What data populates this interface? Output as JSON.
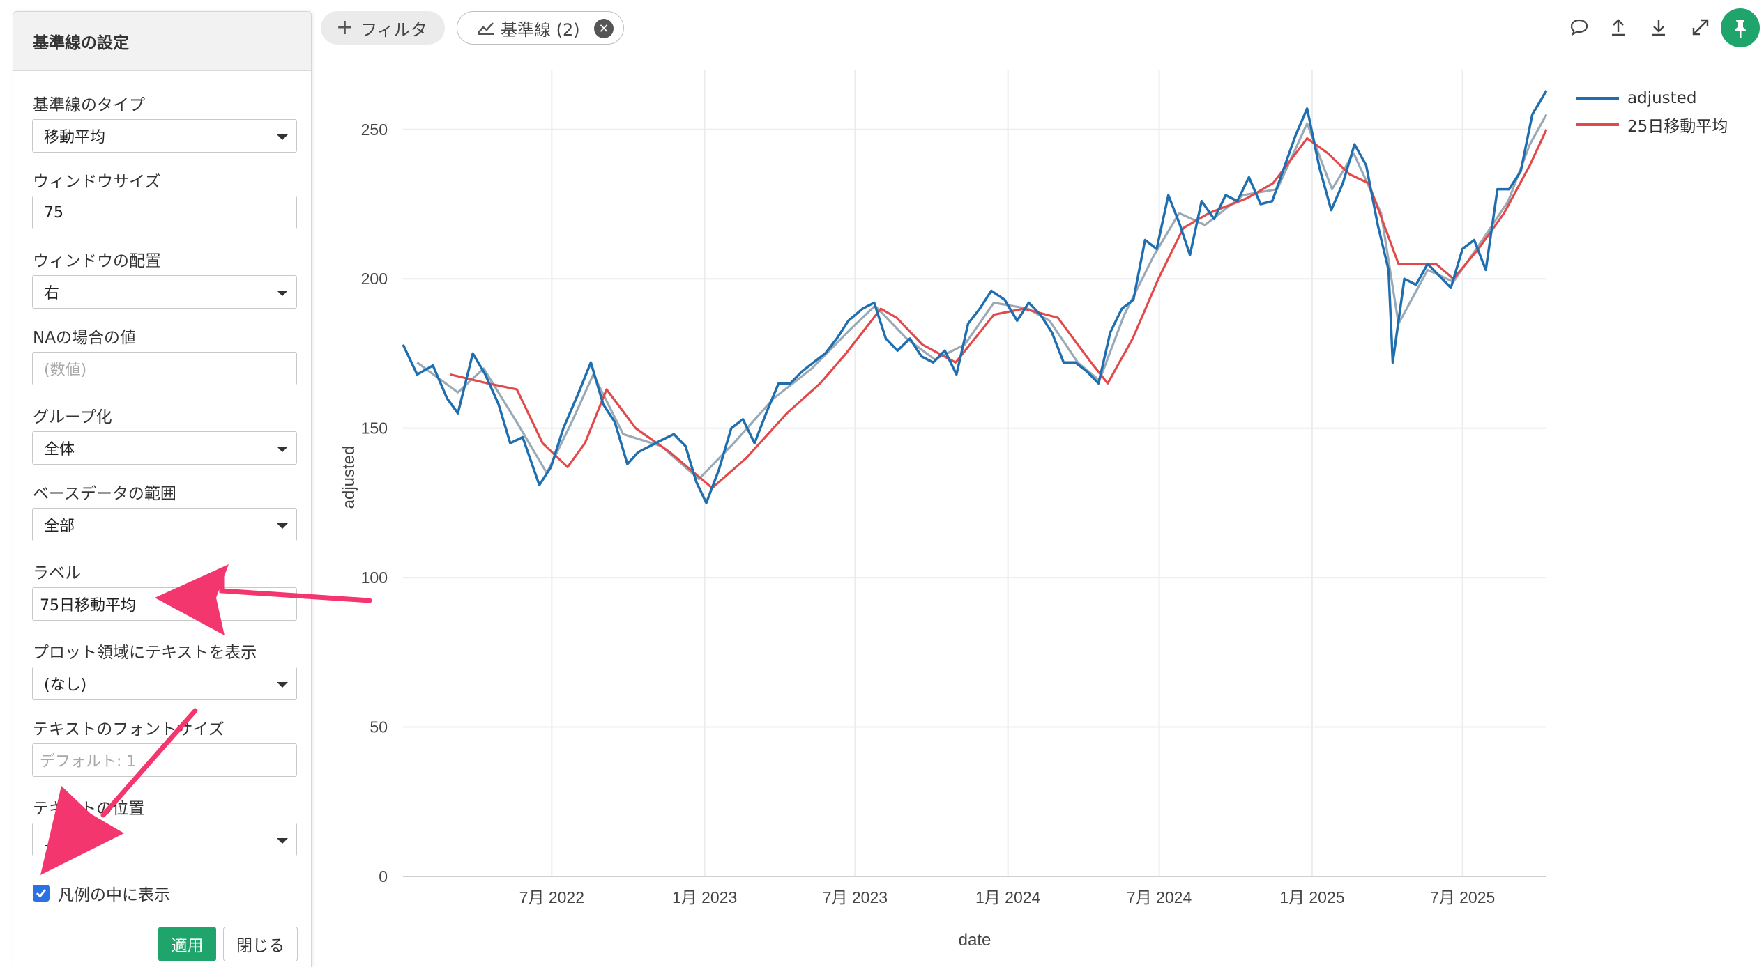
{
  "panel": {
    "title": "基準線の設定",
    "fields": {
      "baseline_type": {
        "label": "基準線のタイプ",
        "value": "移動平均"
      },
      "window_size": {
        "label": "ウィンドウサイズ",
        "value": "75"
      },
      "window_position": {
        "label": "ウィンドウの配置",
        "value": "右"
      },
      "na_value": {
        "label": "NAの場合の値",
        "placeholder": "(数値)"
      },
      "grouping": {
        "label": "グループ化",
        "value": "全体"
      },
      "base_range": {
        "label": "ベースデータの範囲",
        "value": "全部"
      },
      "label": {
        "label": "ラベル",
        "value": "75日移動平均"
      },
      "plot_text": {
        "label": "プロット領域にテキストを表示",
        "value": "(なし)"
      },
      "font_size": {
        "label": "テキストのフォントサイズ",
        "placeholder": "デフォルト: 1"
      },
      "text_position": {
        "label": "テキストの位置",
        "value": "上"
      }
    },
    "show_in_legend": {
      "label": "凡例の中に表示",
      "checked": true
    },
    "apply_label": "適用",
    "close_label": "閉じる"
  },
  "toolbar": {
    "filter_label": "フィルタ",
    "baseline_label": "基準線 (2)",
    "icons": [
      "comment-icon",
      "upload-icon",
      "download-icon",
      "expand-icon",
      "pin-icon"
    ]
  },
  "colors": {
    "adjusted": "#1f6fb0",
    "ma25": "#e2494b",
    "ma75": "#9aa9b6",
    "accent_green": "#1fa46c",
    "checkbox_blue": "#2a72e4",
    "annotation_arrow": "#f4366f"
  },
  "chart_data": {
    "type": "line",
    "xlabel": "date",
    "ylabel": "adjusted",
    "x_range": [
      "2022-01-03",
      "2025-10-10"
    ],
    "ylim": [
      0,
      270
    ],
    "y_ticks": [
      0,
      50,
      100,
      150,
      200,
      250
    ],
    "x_ticks": [
      "7月 2022",
      "1月 2023",
      "7月 2023",
      "1月 2024",
      "7月 2024",
      "1月 2025",
      "7月 2025"
    ],
    "x_tick_dates": [
      "2022-07-01",
      "2023-01-01",
      "2023-07-01",
      "2024-01-01",
      "2024-07-01",
      "2025-01-01",
      "2025-07-01"
    ],
    "grid": true,
    "legend_position": "top-right",
    "series": [
      {
        "name": "adjusted",
        "color": "#1f6fb0",
        "points": [
          [
            "2022-01-03",
            178
          ],
          [
            "2022-01-20",
            168
          ],
          [
            "2022-02-08",
            171
          ],
          [
            "2022-02-25",
            160
          ],
          [
            "2022-03-10",
            155
          ],
          [
            "2022-03-28",
            175
          ],
          [
            "2022-04-12",
            168
          ],
          [
            "2022-04-28",
            158
          ],
          [
            "2022-05-12",
            145
          ],
          [
            "2022-05-27",
            147
          ],
          [
            "2022-06-16",
            131
          ],
          [
            "2022-06-30",
            137
          ],
          [
            "2022-07-15",
            150
          ],
          [
            "2022-08-01",
            161
          ],
          [
            "2022-08-17",
            172
          ],
          [
            "2022-09-01",
            158
          ],
          [
            "2022-09-15",
            152
          ],
          [
            "2022-09-30",
            138
          ],
          [
            "2022-10-13",
            142
          ],
          [
            "2022-10-27",
            144
          ],
          [
            "2022-11-10",
            146
          ],
          [
            "2022-11-25",
            148
          ],
          [
            "2022-12-09",
            144
          ],
          [
            "2022-12-22",
            132
          ],
          [
            "2023-01-03",
            125
          ],
          [
            "2023-01-18",
            136
          ],
          [
            "2023-02-02",
            150
          ],
          [
            "2023-02-16",
            153
          ],
          [
            "2023-03-02",
            145
          ],
          [
            "2023-03-16",
            155
          ],
          [
            "2023-03-31",
            165
          ],
          [
            "2023-04-14",
            165
          ],
          [
            "2023-04-28",
            169
          ],
          [
            "2023-05-12",
            172
          ],
          [
            "2023-05-26",
            175
          ],
          [
            "2023-06-09",
            180
          ],
          [
            "2023-06-23",
            186
          ],
          [
            "2023-07-10",
            190
          ],
          [
            "2023-07-24",
            192
          ],
          [
            "2023-08-07",
            180
          ],
          [
            "2023-08-21",
            176
          ],
          [
            "2023-09-05",
            180
          ],
          [
            "2023-09-19",
            174
          ],
          [
            "2023-10-03",
            172
          ],
          [
            "2023-10-17",
            176
          ],
          [
            "2023-10-31",
            168
          ],
          [
            "2023-11-14",
            185
          ],
          [
            "2023-11-28",
            190
          ],
          [
            "2023-12-12",
            196
          ],
          [
            "2023-12-28",
            193
          ],
          [
            "2024-01-12",
            186
          ],
          [
            "2024-01-26",
            192
          ],
          [
            "2024-02-09",
            188
          ],
          [
            "2024-02-23",
            182
          ],
          [
            "2024-03-08",
            172
          ],
          [
            "2024-03-22",
            172
          ],
          [
            "2024-04-05",
            169
          ],
          [
            "2024-04-19",
            165
          ],
          [
            "2024-05-03",
            182
          ],
          [
            "2024-05-17",
            190
          ],
          [
            "2024-05-31",
            193
          ],
          [
            "2024-06-14",
            213
          ],
          [
            "2024-06-28",
            210
          ],
          [
            "2024-07-12",
            228
          ],
          [
            "2024-07-26",
            218
          ],
          [
            "2024-08-07",
            208
          ],
          [
            "2024-08-21",
            226
          ],
          [
            "2024-09-05",
            220
          ],
          [
            "2024-09-19",
            228
          ],
          [
            "2024-10-03",
            226
          ],
          [
            "2024-10-17",
            234
          ],
          [
            "2024-10-31",
            225
          ],
          [
            "2024-11-14",
            226
          ],
          [
            "2024-11-28",
            237
          ],
          [
            "2024-12-12",
            248
          ],
          [
            "2024-12-26",
            257
          ],
          [
            "2025-01-10",
            237
          ],
          [
            "2025-01-24",
            223
          ],
          [
            "2025-02-07",
            232
          ],
          [
            "2025-02-21",
            245
          ],
          [
            "2025-03-07",
            238
          ],
          [
            "2025-03-21",
            218
          ],
          [
            "2025-04-03",
            203
          ],
          [
            "2025-04-08",
            172
          ],
          [
            "2025-04-22",
            200
          ],
          [
            "2025-05-06",
            198
          ],
          [
            "2025-05-20",
            205
          ],
          [
            "2025-06-03",
            201
          ],
          [
            "2025-06-17",
            197
          ],
          [
            "2025-07-01",
            210
          ],
          [
            "2025-07-15",
            213
          ],
          [
            "2025-07-29",
            203
          ],
          [
            "2025-08-12",
            230
          ],
          [
            "2025-08-26",
            230
          ],
          [
            "2025-09-09",
            236
          ],
          [
            "2025-09-23",
            255
          ],
          [
            "2025-10-10",
            263
          ]
        ]
      },
      {
        "name": "25日移動平均",
        "color": "#e2494b",
        "points": [
          [
            "2022-03-01",
            168
          ],
          [
            "2022-04-15",
            165
          ],
          [
            "2022-05-20",
            163
          ],
          [
            "2022-06-20",
            145
          ],
          [
            "2022-07-20",
            137
          ],
          [
            "2022-08-10",
            145
          ],
          [
            "2022-09-05",
            163
          ],
          [
            "2022-10-10",
            150
          ],
          [
            "2022-11-20",
            142
          ],
          [
            "2023-01-10",
            130
          ],
          [
            "2023-02-20",
            140
          ],
          [
            "2023-04-10",
            155
          ],
          [
            "2023-05-20",
            165
          ],
          [
            "2023-06-20",
            175
          ],
          [
            "2023-08-01",
            190
          ],
          [
            "2023-08-20",
            187
          ],
          [
            "2023-09-20",
            178
          ],
          [
            "2023-10-30",
            172
          ],
          [
            "2023-12-15",
            188
          ],
          [
            "2024-01-20",
            190
          ],
          [
            "2024-03-01",
            187
          ],
          [
            "2024-04-10",
            172
          ],
          [
            "2024-04-30",
            165
          ],
          [
            "2024-05-30",
            180
          ],
          [
            "2024-06-30",
            200
          ],
          [
            "2024-07-30",
            217
          ],
          [
            "2024-08-30",
            222
          ],
          [
            "2024-10-15",
            227
          ],
          [
            "2024-11-15",
            232
          ],
          [
            "2024-12-26",
            247
          ],
          [
            "2025-01-20",
            242
          ],
          [
            "2025-02-15",
            235
          ],
          [
            "2025-03-10",
            232
          ],
          [
            "2025-04-15",
            205
          ],
          [
            "2025-05-30",
            205
          ],
          [
            "2025-06-20",
            200
          ],
          [
            "2025-07-20",
            210
          ],
          [
            "2025-08-20",
            222
          ],
          [
            "2025-09-20",
            238
          ],
          [
            "2025-10-10",
            250
          ]
        ]
      },
      {
        "name": "75日移動平均",
        "color": "#9aa9b6",
        "points": [
          [
            "2022-01-20",
            172
          ],
          [
            "2022-03-10",
            162
          ],
          [
            "2022-04-10",
            170
          ],
          [
            "2022-05-20",
            152
          ],
          [
            "2022-06-25",
            135
          ],
          [
            "2022-07-25",
            152
          ],
          [
            "2022-08-20",
            168
          ],
          [
            "2022-09-25",
            148
          ],
          [
            "2022-11-10",
            144
          ],
          [
            "2022-12-25",
            133
          ],
          [
            "2023-02-05",
            145
          ],
          [
            "2023-03-25",
            160
          ],
          [
            "2023-05-10",
            170
          ],
          [
            "2023-06-25",
            183
          ],
          [
            "2023-07-25",
            191
          ],
          [
            "2023-09-01",
            180
          ],
          [
            "2023-10-05",
            173
          ],
          [
            "2023-11-10",
            178
          ],
          [
            "2023-12-15",
            192
          ],
          [
            "2024-01-25",
            190
          ],
          [
            "2024-02-20",
            186
          ],
          [
            "2024-03-25",
            172
          ],
          [
            "2024-04-20",
            166
          ],
          [
            "2024-05-20",
            188
          ],
          [
            "2024-06-25",
            208
          ],
          [
            "2024-07-25",
            222
          ],
          [
            "2024-08-25",
            218
          ],
          [
            "2024-10-10",
            228
          ],
          [
            "2024-11-20",
            230
          ],
          [
            "2024-12-26",
            252
          ],
          [
            "2025-01-25",
            230
          ],
          [
            "2025-02-20",
            242
          ],
          [
            "2025-03-25",
            222
          ],
          [
            "2025-04-15",
            185
          ],
          [
            "2025-05-20",
            203
          ],
          [
            "2025-06-20",
            199
          ],
          [
            "2025-07-20",
            211
          ],
          [
            "2025-08-25",
            226
          ],
          [
            "2025-09-20",
            245
          ],
          [
            "2025-10-10",
            255
          ]
        ]
      }
    ]
  },
  "legend": {
    "items": [
      {
        "name": "adjusted",
        "color": "#1f6fb0"
      },
      {
        "name": "25日移動平均",
        "color": "#e2494b"
      }
    ]
  }
}
